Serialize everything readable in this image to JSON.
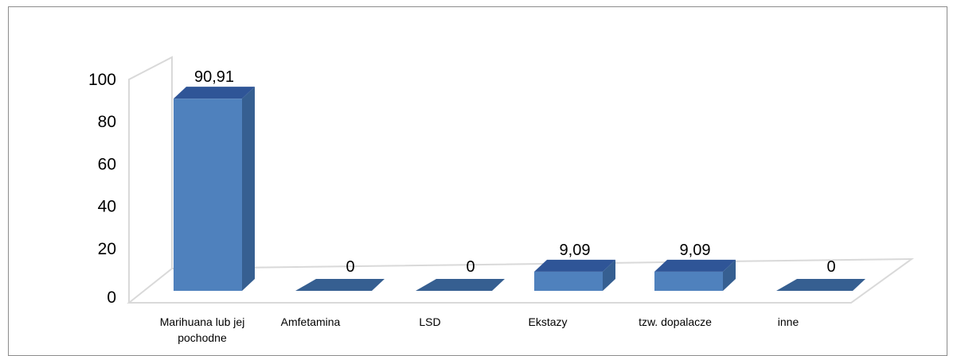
{
  "chart_data": {
    "type": "bar",
    "style": "3d",
    "categories": [
      "Marihuana lub jej pochodne",
      "Amfetamina",
      "LSD",
      "Ekstazy",
      "tzw. dopalacze",
      "inne"
    ],
    "category_lines": [
      [
        "Marihuana lub jej",
        "pochodne"
      ],
      [
        "Amfetamina"
      ],
      [
        "LSD"
      ],
      [
        "Ekstazy"
      ],
      [
        "tzw. dopalacze"
      ],
      [
        "inne"
      ]
    ],
    "values": [
      90.91,
      0,
      0,
      9.09,
      9.09,
      0
    ],
    "data_labels": [
      "90,91",
      "0",
      "0",
      "9,09",
      "9,09",
      "0"
    ],
    "yticks": [
      "0",
      "20",
      "40",
      "60",
      "80",
      "100"
    ],
    "ylim": [
      0,
      100
    ],
    "legend": "none",
    "colors": {
      "front": "#4f81bd",
      "side": "#365f91",
      "top": "#2f5597",
      "wall": "#d9d9d9"
    }
  }
}
